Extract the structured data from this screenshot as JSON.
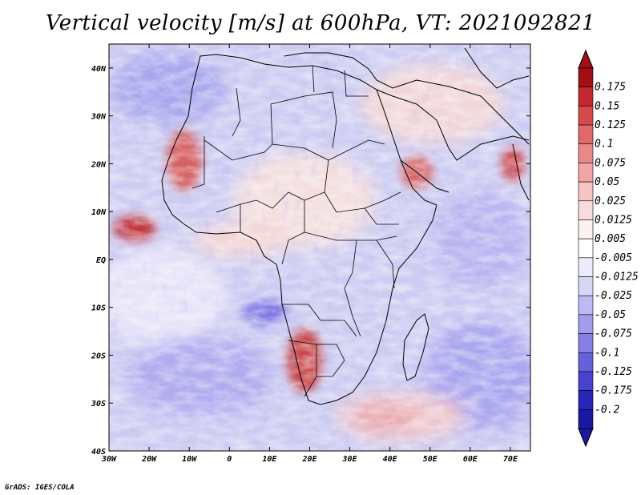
{
  "title": "Vertical velocity [m/s] at 600hPa, VT: 2021092821",
  "credit": "GrADS: IGES/COLA",
  "map": {
    "lon_labels": [
      "30W",
      "20W",
      "10W",
      "0",
      "10E",
      "20E",
      "30E",
      "40E",
      "50E",
      "60E",
      "70E"
    ],
    "lat_labels": [
      "40N",
      "30N",
      "20N",
      "10N",
      "EQ",
      "10S",
      "20S",
      "30S",
      "40S"
    ],
    "lon_range": [
      -30,
      75
    ],
    "lat_range": [
      -40,
      45
    ],
    "variable": "Vertical velocity",
    "level": "600hPa",
    "valid_time": "2021092821"
  },
  "colorbar": {
    "labels": [
      "0.175",
      "0.15",
      "0.125",
      "0.1",
      "0.075",
      "0.05",
      "0.025",
      "0.0125",
      "0.005",
      "-0.005",
      "-0.0125",
      "-0.025",
      "-0.05",
      "-0.075",
      "-0.1",
      "-0.125",
      "-0.175",
      "-0.2"
    ],
    "colors": [
      "#a00f14",
      "#c0282d",
      "#d44a4a",
      "#e06a6a",
      "#e98888",
      "#f0a6a6",
      "#f6c4c4",
      "#fadcdc",
      "#fdf0f0",
      "#ffffff",
      "#ecebfa",
      "#d8d6f6",
      "#bdb9f2",
      "#a29ded",
      "#8580e6",
      "#6660dc",
      "#4843cc",
      "#2a25b8",
      "#1b17a0"
    ]
  }
}
